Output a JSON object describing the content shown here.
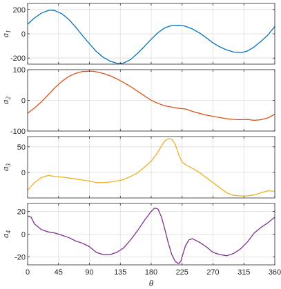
{
  "chart_data": [
    {
      "type": "line",
      "ylabel": "a",
      "ylabel_sub": "1",
      "xlim": [
        0,
        360
      ],
      "ylim": [
        -250,
        250
      ],
      "yticks": [
        -200,
        0,
        200
      ],
      "ytick_labels": [
        "-200",
        "0",
        "200"
      ],
      "grid": true,
      "series": [
        {
          "color": "#0072BD",
          "x": [
            0,
            10,
            20,
            30,
            35,
            40,
            50,
            60,
            70,
            80,
            90,
            100,
            110,
            120,
            130,
            135,
            140,
            150,
            160,
            170,
            180,
            190,
            200,
            210,
            220,
            225,
            230,
            240,
            250,
            260,
            270,
            280,
            290,
            300,
            310,
            315,
            320,
            330,
            340,
            350,
            360
          ],
          "y": [
            80,
            130,
            170,
            192,
            195,
            190,
            165,
            118,
            55,
            -15,
            -82,
            -145,
            -193,
            -225,
            -243,
            -245,
            -240,
            -212,
            -162,
            -105,
            -45,
            10,
            50,
            68,
            70,
            68,
            62,
            40,
            8,
            -32,
            -75,
            -108,
            -133,
            -150,
            -155,
            -150,
            -142,
            -108,
            -62,
            -10,
            60
          ]
        }
      ]
    },
    {
      "type": "line",
      "ylabel": "a",
      "ylabel_sub": "2",
      "xlim": [
        0,
        360
      ],
      "ylim": [
        -100,
        100
      ],
      "yticks": [
        -100,
        0,
        100
      ],
      "ytick_labels": [
        "-100",
        "0",
        "100"
      ],
      "grid": true,
      "series": [
        {
          "color": "#D95319",
          "x": [
            0,
            10,
            20,
            30,
            40,
            50,
            60,
            70,
            80,
            90,
            95,
            100,
            110,
            120,
            130,
            140,
            150,
            160,
            170,
            180,
            190,
            200,
            210,
            220,
            230,
            240,
            250,
            260,
            270,
            280,
            290,
            300,
            310,
            320,
            330,
            340,
            350,
            360
          ],
          "y": [
            -42,
            -25,
            -5,
            18,
            42,
            62,
            78,
            88,
            94,
            95,
            95,
            93,
            88,
            80,
            70,
            58,
            45,
            30,
            15,
            0,
            -10,
            -18,
            -22,
            -26,
            -28,
            -36,
            -42,
            -48,
            -52,
            -56,
            -60,
            -62,
            -63,
            -62,
            -65,
            -63,
            -57,
            -45
          ]
        }
      ]
    },
    {
      "type": "line",
      "ylabel": "a",
      "ylabel_sub": "3",
      "xlim": [
        0,
        360
      ],
      "ylim": [
        -50,
        70
      ],
      "yticks": [
        0,
        50
      ],
      "ytick_labels": [
        "0",
        "50"
      ],
      "grid": true,
      "series": [
        {
          "color": "#EDB120",
          "x": [
            0,
            10,
            20,
            30,
            40,
            50,
            60,
            70,
            80,
            90,
            100,
            110,
            120,
            130,
            140,
            150,
            160,
            170,
            180,
            190,
            195,
            200,
            205,
            210,
            215,
            220,
            225,
            230,
            240,
            250,
            260,
            270,
            280,
            290,
            300,
            310,
            320,
            330,
            340,
            350,
            360
          ],
          "y": [
            -35,
            -20,
            -10,
            -6,
            -8,
            -9,
            -11,
            -13,
            -15,
            -17,
            -20,
            -20,
            -19,
            -17,
            -14,
            -8,
            -1,
            10,
            22,
            40,
            52,
            62,
            66,
            65,
            55,
            35,
            20,
            15,
            8,
            0,
            -10,
            -20,
            -30,
            -40,
            -45,
            -46,
            -46,
            -44,
            -40,
            -36,
            -37
          ]
        }
      ]
    },
    {
      "type": "line",
      "ylabel": "a",
      "ylabel_sub": "4",
      "xlim": [
        0,
        360
      ],
      "ylim": [
        -27,
        27
      ],
      "yticks": [
        -20,
        0,
        20
      ],
      "ytick_labels": [
        "-20",
        "0",
        "20"
      ],
      "xticks": [
        0,
        45,
        90,
        135,
        180,
        225,
        270,
        315,
        360
      ],
      "xtick_labels": [
        "0",
        "45",
        "90",
        "135",
        "180",
        "225",
        "270",
        "315",
        "360"
      ],
      "xlabel": "θ",
      "grid": true,
      "series": [
        {
          "color": "#7E2F8E",
          "x": [
            0,
            5,
            10,
            20,
            30,
            40,
            50,
            60,
            70,
            80,
            90,
            100,
            110,
            120,
            130,
            140,
            150,
            160,
            170,
            180,
            185,
            190,
            195,
            200,
            205,
            210,
            215,
            220,
            223,
            226,
            230,
            235,
            240,
            250,
            260,
            270,
            280,
            290,
            300,
            310,
            320,
            330,
            340,
            350,
            360
          ],
          "y": [
            16,
            15,
            9,
            4,
            2,
            1,
            -1,
            -3,
            -6,
            -8,
            -11,
            -16,
            -18,
            -18,
            -16,
            -12,
            -5,
            3,
            12,
            20,
            23,
            22,
            15,
            4,
            -8,
            -18,
            -24,
            -26,
            -24,
            -18,
            -10,
            -5,
            -4,
            -7,
            -11,
            -16,
            -18,
            -19,
            -17,
            -13,
            -7,
            1,
            6,
            10,
            15
          ]
        }
      ]
    }
  ]
}
